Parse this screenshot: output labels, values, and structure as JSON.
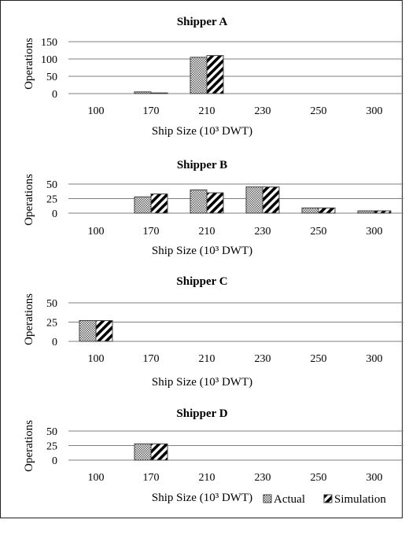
{
  "legend": {
    "actual_label": "Actual",
    "simulation_label": "Simulation"
  },
  "colors": {
    "gridline": "#7f7f7f",
    "bar_outline": "#404040",
    "text": "#000000"
  },
  "chart_data": [
    {
      "type": "bar",
      "title": "Shipper A",
      "xlabel": "Ship Size (10³ DWT)",
      "ylabel": "Operations",
      "categories": [
        "100",
        "170",
        "210",
        "230",
        "250",
        "300"
      ],
      "yticks": [
        0,
        50,
        100,
        150
      ],
      "ylim": [
        0,
        150
      ],
      "series": [
        {
          "name": "Actual",
          "values": [
            0,
            5,
            105,
            0,
            0,
            0
          ]
        },
        {
          "name": "Simulation",
          "values": [
            0,
            2,
            110,
            0,
            0,
            0
          ]
        }
      ]
    },
    {
      "type": "bar",
      "title": "Shipper B",
      "xlabel": "Ship Size (10³ DWT)",
      "ylabel": "Operations",
      "categories": [
        "100",
        "170",
        "210",
        "230",
        "250",
        "300"
      ],
      "yticks": [
        0,
        25,
        50
      ],
      "ylim": [
        0,
        50
      ],
      "series": [
        {
          "name": "Actual",
          "values": [
            0,
            28,
            40,
            45,
            9,
            4
          ]
        },
        {
          "name": "Simulation",
          "values": [
            0,
            33,
            35,
            45,
            9,
            4
          ]
        }
      ]
    },
    {
      "type": "bar",
      "title": "Shipper C",
      "xlabel": "Ship Size (10³ DWT)",
      "ylabel": "Operations",
      "categories": [
        "100",
        "170",
        "210",
        "230",
        "250",
        "300"
      ],
      "yticks": [
        0,
        25,
        50
      ],
      "ylim": [
        0,
        50
      ],
      "series": [
        {
          "name": "Actual",
          "values": [
            27,
            0,
            0,
            0,
            0,
            0
          ]
        },
        {
          "name": "Simulation",
          "values": [
            27,
            0,
            0,
            0,
            0,
            0
          ]
        }
      ]
    },
    {
      "type": "bar",
      "title": "Shipper D",
      "xlabel": "Ship Size (10³ DWT)",
      "ylabel": "Operations",
      "categories": [
        "100",
        "170",
        "210",
        "230",
        "250",
        "300"
      ],
      "yticks": [
        0,
        25,
        50
      ],
      "ylim": [
        0,
        50
      ],
      "series": [
        {
          "name": "Actual",
          "values": [
            0,
            28,
            0,
            0,
            0,
            0
          ]
        },
        {
          "name": "Simulation",
          "values": [
            0,
            28,
            0,
            0,
            0,
            0
          ]
        }
      ]
    }
  ]
}
